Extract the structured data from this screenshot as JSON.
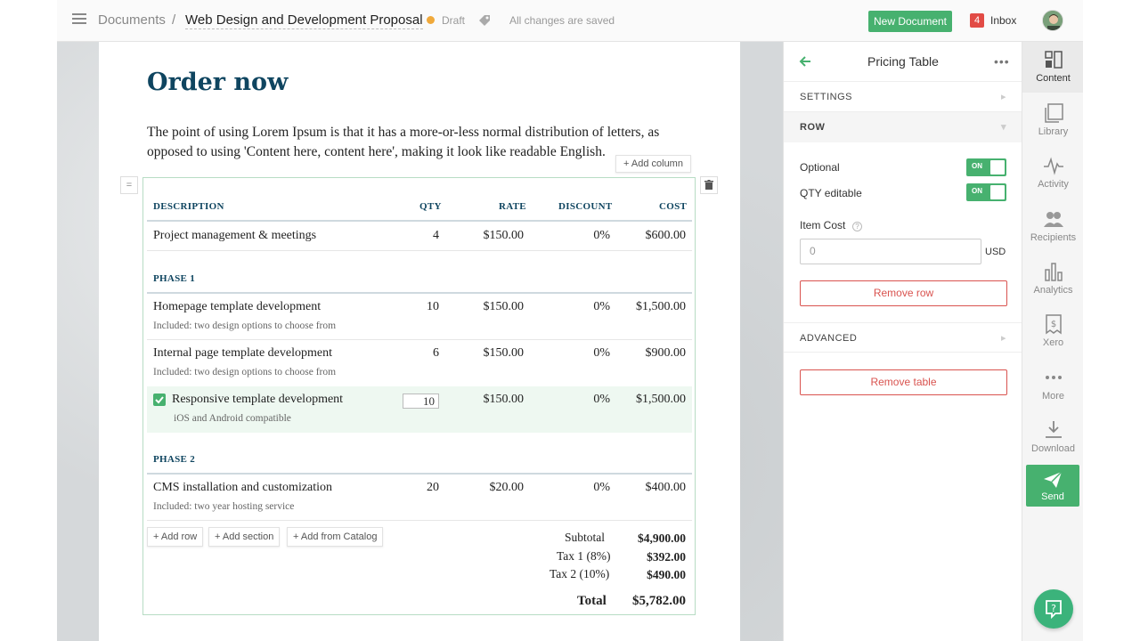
{
  "header": {
    "breadcrumb_root": "Documents",
    "separator": "/",
    "doc_title": "Web Design and Development Proposal",
    "status": "Draft",
    "save_status": "All changes are saved",
    "new_doc_label": "New Document",
    "inbox_count": "4",
    "inbox_label": "Inbox"
  },
  "page": {
    "heading": "Order now",
    "paragraph": "The point of using Lorem Ipsum is that it has a more-or-less normal distribution of letters, as opposed to using 'Content here, content here', making it look like readable English.",
    "add_column": "+ Add column",
    "handle": "="
  },
  "table": {
    "headers": {
      "description": "DESCRIPTION",
      "qty": "QTY",
      "rate": "RATE",
      "discount": "DISCOUNT",
      "cost": "COST"
    },
    "row0": {
      "desc": "Project management & meetings",
      "qty": "4",
      "rate": "$150.00",
      "discount": "0%",
      "cost": "$600.00"
    },
    "phase1": "PHASE 1",
    "row1": {
      "desc": "Homepage template development",
      "sub": "Included: two design options to choose from",
      "qty": "10",
      "rate": "$150.00",
      "discount": "0%",
      "cost": "$1,500.00"
    },
    "row2": {
      "desc": "Internal page template development",
      "sub": "Included: two design options to choose from",
      "qty": "6",
      "rate": "$150.00",
      "discount": "0%",
      "cost": "$900.00"
    },
    "row3": {
      "desc": "Responsive template development",
      "sub": "iOS and Android compatible",
      "qty": "10",
      "rate": "$150.00",
      "discount": "0%",
      "cost": "$1,500.00"
    },
    "phase2": "PHASE 2",
    "row4": {
      "desc": "CMS installation and customization",
      "sub": "Included: two year hosting service",
      "qty": "20",
      "rate": "$20.00",
      "discount": "0%",
      "cost": "$400.00"
    },
    "add_row": "+ Add row",
    "add_section": "+ Add section",
    "add_catalog": "+ Add from Catalog",
    "totals": {
      "subtotal_label": "Subtotal",
      "subtotal": "$4,900.00",
      "tax1_label": "Tax 1 (8%)",
      "tax1": "$392.00",
      "tax2_label": "Tax 2 (10%)",
      "tax2": "$490.00",
      "total_label": "Total",
      "total": "$5,782.00"
    }
  },
  "panel": {
    "title": "Pricing Table",
    "settings": "SETTINGS",
    "row": "ROW",
    "optional_label": "Optional",
    "qty_editable_label": "QTY editable",
    "toggle_on": "ON",
    "item_cost_label": "Item Cost",
    "item_cost_value": "0",
    "currency": "USD",
    "remove_row": "Remove row",
    "advanced": "ADVANCED",
    "remove_table": "Remove table"
  },
  "rail": {
    "content": "Content",
    "library": "Library",
    "activity": "Activity",
    "recipients": "Recipients",
    "analytics": "Analytics",
    "xero": "Xero",
    "more": "More",
    "download": "Download",
    "send": "Send"
  },
  "colors": {
    "accent": "#47b16f",
    "heading": "#0f4560",
    "danger": "#d9534f",
    "badge": "#e24b45"
  }
}
